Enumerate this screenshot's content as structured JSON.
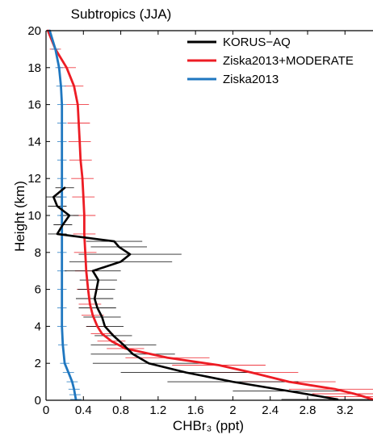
{
  "chart_data": {
    "type": "line",
    "title": "Subtropics (JJA)",
    "xlabel": "CHBr₃ (ppt)",
    "ylabel": "Height (km)",
    "xlim": [
      0,
      3.5
    ],
    "ylim": [
      0,
      20
    ],
    "xticks": [
      0,
      0.4,
      0.8,
      1.2,
      1.6,
      2,
      2.4,
      2.8,
      3.2
    ],
    "xtick_labels": [
      "0",
      "0.4",
      "0.8",
      "1.2",
      "1.6",
      "2",
      "2.4",
      "2.8",
      "3.2"
    ],
    "yticks": [
      0,
      2,
      4,
      6,
      8,
      10,
      12,
      14,
      16,
      18,
      20
    ],
    "ytick_labels": [
      "0",
      "2",
      "4",
      "6",
      "8",
      "10",
      "12",
      "14",
      "16",
      "18",
      "20"
    ],
    "grid": false,
    "legend_position": "top-right",
    "series": [
      {
        "name": "KORUS−AQ",
        "color": "#000000",
        "points": [
          [
            3.12,
            0.05
          ],
          [
            2.6,
            0.5
          ],
          [
            2.0,
            1.0
          ],
          [
            1.5,
            1.5
          ],
          [
            1.1,
            2.0
          ],
          [
            0.93,
            2.5
          ],
          [
            0.83,
            3.0
          ],
          [
            0.72,
            3.5
          ],
          [
            0.63,
            4.0
          ],
          [
            0.6,
            4.5
          ],
          [
            0.55,
            5.0
          ],
          [
            0.52,
            5.5
          ],
          [
            0.54,
            6.0
          ],
          [
            0.56,
            6.5
          ],
          [
            0.5,
            7.0
          ],
          [
            0.8,
            7.5
          ],
          [
            0.9,
            7.9
          ],
          [
            0.78,
            8.3
          ],
          [
            0.73,
            8.6
          ],
          [
            0.12,
            9.0
          ],
          [
            0.18,
            9.5
          ],
          [
            0.25,
            10.0
          ],
          [
            0.12,
            10.5
          ],
          [
            0.08,
            11.0
          ],
          [
            0.2,
            11.5
          ]
        ],
        "errors": [
          [
            3.12,
            0.05,
            0.6
          ],
          [
            2.6,
            0.5,
            0.6
          ],
          [
            2.0,
            1.0,
            0.7
          ],
          [
            1.5,
            1.5,
            0.7
          ],
          [
            1.1,
            2.0,
            0.6
          ],
          [
            0.93,
            2.5,
            0.45
          ],
          [
            0.83,
            3.0,
            0.35
          ],
          [
            0.72,
            3.5,
            0.2
          ],
          [
            0.63,
            4.0,
            0.2
          ],
          [
            0.6,
            4.5,
            0.2
          ],
          [
            0.55,
            5.0,
            0.2
          ],
          [
            0.52,
            5.5,
            0.2
          ],
          [
            0.54,
            6.0,
            0.2
          ],
          [
            0.56,
            6.5,
            0.2
          ],
          [
            0.5,
            7.0,
            0.3
          ],
          [
            0.8,
            7.5,
            0.55
          ],
          [
            0.9,
            7.9,
            0.55
          ],
          [
            0.78,
            8.3,
            0.3
          ],
          [
            0.73,
            8.6,
            0.3
          ],
          [
            0.12,
            9.0,
            0.1
          ],
          [
            0.18,
            9.5,
            0.1
          ],
          [
            0.25,
            10.0,
            0.1
          ],
          [
            0.12,
            10.5,
            0.1
          ],
          [
            0.08,
            11.0,
            0.1
          ],
          [
            0.2,
            11.5,
            0.1
          ]
        ]
      },
      {
        "name": "Ziska2013+MODERATE",
        "color": "#ed1c24",
        "points": [
          [
            3.5,
            0.05
          ],
          [
            3.4,
            0.2
          ],
          [
            3.3,
            0.35
          ],
          [
            3.1,
            0.6
          ],
          [
            2.6,
            1.0
          ],
          [
            2.2,
            1.5
          ],
          [
            1.85,
            1.9
          ],
          [
            1.3,
            2.3
          ],
          [
            0.85,
            2.8
          ],
          [
            0.7,
            3.2
          ],
          [
            0.6,
            3.6
          ],
          [
            0.55,
            4.0
          ],
          [
            0.5,
            4.6
          ],
          [
            0.47,
            5.2
          ],
          [
            0.45,
            6.0
          ],
          [
            0.43,
            7.0
          ],
          [
            0.42,
            8.0
          ],
          [
            0.41,
            9.0
          ],
          [
            0.41,
            10.0
          ],
          [
            0.4,
            11.0
          ],
          [
            0.39,
            12.0
          ],
          [
            0.37,
            13.0
          ],
          [
            0.36,
            14.0
          ],
          [
            0.35,
            15.0
          ],
          [
            0.34,
            16.0
          ],
          [
            0.3,
            17.0
          ],
          [
            0.22,
            18.0
          ],
          [
            0.1,
            19.0
          ],
          [
            0.02,
            20.0
          ]
        ],
        "errors": [
          [
            3.4,
            0.2,
            0.45
          ],
          [
            3.3,
            0.35,
            0.45
          ],
          [
            3.1,
            0.6,
            0.5
          ],
          [
            2.6,
            1.0,
            0.5
          ],
          [
            2.2,
            1.5,
            0.5
          ],
          [
            1.85,
            1.9,
            0.5
          ],
          [
            1.3,
            2.3,
            0.45
          ],
          [
            0.85,
            2.8,
            0.2
          ],
          [
            0.7,
            3.2,
            0.15
          ],
          [
            0.6,
            3.6,
            0.12
          ],
          [
            0.55,
            4.0,
            0.12
          ],
          [
            0.5,
            4.6,
            0.12
          ],
          [
            0.47,
            5.2,
            0.12
          ],
          [
            0.45,
            6.0,
            0.12
          ],
          [
            0.43,
            7.0,
            0.12
          ],
          [
            0.42,
            8.0,
            0.12
          ],
          [
            0.41,
            9.0,
            0.12
          ],
          [
            0.41,
            10.0,
            0.12
          ],
          [
            0.4,
            11.0,
            0.12
          ],
          [
            0.39,
            12.0,
            0.12
          ],
          [
            0.37,
            13.0,
            0.12
          ],
          [
            0.36,
            14.0,
            0.12
          ],
          [
            0.35,
            15.0,
            0.12
          ],
          [
            0.34,
            16.0,
            0.12
          ],
          [
            0.3,
            17.0,
            0.1
          ],
          [
            0.22,
            18.0,
            0.1
          ],
          [
            0.1,
            19.0,
            0.06
          ]
        ]
      },
      {
        "name": "Ziska2013",
        "color": "#1f77c0",
        "points": [
          [
            0.32,
            0.05
          ],
          [
            0.31,
            0.3
          ],
          [
            0.3,
            0.6
          ],
          [
            0.28,
            1.0
          ],
          [
            0.24,
            1.5
          ],
          [
            0.2,
            2.0
          ],
          [
            0.18,
            3.0
          ],
          [
            0.17,
            4.0
          ],
          [
            0.17,
            5.0
          ],
          [
            0.17,
            6.0
          ],
          [
            0.17,
            7.0
          ],
          [
            0.17,
            8.0
          ],
          [
            0.17,
            9.0
          ],
          [
            0.17,
            10.0
          ],
          [
            0.17,
            11.0
          ],
          [
            0.17,
            12.0
          ],
          [
            0.17,
            13.0
          ],
          [
            0.17,
            14.0
          ],
          [
            0.17,
            15.0
          ],
          [
            0.17,
            16.0
          ],
          [
            0.16,
            17.0
          ],
          [
            0.14,
            18.0
          ],
          [
            0.1,
            19.0
          ],
          [
            0.04,
            20.0
          ]
        ],
        "errors": [
          [
            0.32,
            0.05,
            0.06
          ],
          [
            0.31,
            0.3,
            0.06
          ],
          [
            0.3,
            0.6,
            0.06
          ],
          [
            0.28,
            1.0,
            0.06
          ],
          [
            0.24,
            1.5,
            0.06
          ],
          [
            0.2,
            2.0,
            0.05
          ],
          [
            0.18,
            3.0,
            0.05
          ],
          [
            0.17,
            4.0,
            0.05
          ],
          [
            0.17,
            5.0,
            0.05
          ],
          [
            0.17,
            6.0,
            0.05
          ],
          [
            0.17,
            7.0,
            0.05
          ],
          [
            0.17,
            8.0,
            0.05
          ],
          [
            0.17,
            9.0,
            0.05
          ],
          [
            0.17,
            10.0,
            0.05
          ],
          [
            0.17,
            11.0,
            0.05
          ],
          [
            0.17,
            12.0,
            0.05
          ],
          [
            0.17,
            13.0,
            0.05
          ],
          [
            0.17,
            14.0,
            0.05
          ],
          [
            0.17,
            15.0,
            0.05
          ],
          [
            0.17,
            16.0,
            0.05
          ],
          [
            0.16,
            17.0,
            0.05
          ],
          [
            0.14,
            18.0,
            0.04
          ],
          [
            0.1,
            19.0,
            0.04
          ]
        ]
      }
    ]
  }
}
